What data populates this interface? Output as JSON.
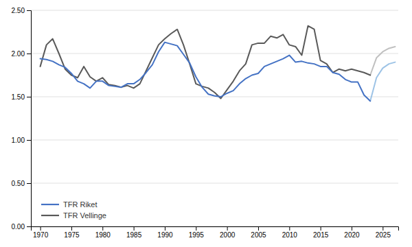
{
  "chart_data": {
    "type": "line",
    "xlim": [
      1968.5,
      2027.5
    ],
    "xticks": [
      1970,
      1975,
      1980,
      1985,
      1990,
      1995,
      2000,
      2005,
      2010,
      2015,
      2020,
      2025
    ],
    "ylim": [
      0.0,
      2.5
    ],
    "yticks": [
      {
        "value": 0.0,
        "label": "0.00"
      },
      {
        "value": 0.5,
        "label": "0.50"
      },
      {
        "value": 1.0,
        "label": "1.00"
      },
      {
        "value": 1.5,
        "label": "1.50"
      },
      {
        "value": 2.0,
        "label": "2.00"
      },
      {
        "value": 2.5,
        "label": "2.50"
      }
    ],
    "grid": "y",
    "legend": "lower left",
    "series": [
      {
        "name": "TFR Riket",
        "color": "#4472C4",
        "x": [
          1970,
          1971,
          1972,
          1973,
          1974,
          1975,
          1976,
          1977,
          1978,
          1979,
          1980,
          1981,
          1982,
          1983,
          1984,
          1985,
          1986,
          1987,
          1988,
          1989,
          1990,
          1991,
          1992,
          1993,
          1994,
          1995,
          1996,
          1997,
          1998,
          1999,
          2000,
          2001,
          2002,
          2003,
          2004,
          2005,
          2006,
          2007,
          2008,
          2009,
          2010,
          2011,
          2012,
          2013,
          2014,
          2015,
          2016,
          2017,
          2018,
          2019,
          2020,
          2021,
          2022,
          2023
        ],
        "values": [
          1.94,
          1.93,
          1.91,
          1.87,
          1.84,
          1.77,
          1.68,
          1.65,
          1.6,
          1.68,
          1.68,
          1.63,
          1.62,
          1.61,
          1.65,
          1.65,
          1.7,
          1.78,
          1.87,
          2.02,
          2.13,
          2.11,
          2.09,
          1.99,
          1.89,
          1.73,
          1.61,
          1.53,
          1.51,
          1.5,
          1.54,
          1.57,
          1.65,
          1.71,
          1.75,
          1.77,
          1.85,
          1.88,
          1.91,
          1.94,
          1.98,
          1.9,
          1.91,
          1.89,
          1.88,
          1.85,
          1.85,
          1.78,
          1.76,
          1.7,
          1.67,
          1.67,
          1.52,
          1.45
        ]
      },
      {
        "color": "#9DC3E6",
        "x": [
          2023,
          2024,
          2025,
          2026,
          2027
        ],
        "values": [
          1.45,
          1.72,
          1.83,
          1.88,
          1.9
        ]
      },
      {
        "name": "TFR Vellinge",
        "color": "#595959",
        "x": [
          1970,
          1971,
          1972,
          1973,
          1974,
          1975,
          1976,
          1977,
          1978,
          1979,
          1980,
          1981,
          1982,
          1983,
          1984,
          1985,
          1986,
          1987,
          1988,
          1989,
          1990,
          1991,
          1992,
          1993,
          1994,
          1995,
          1996,
          1997,
          1998,
          1999,
          2000,
          2001,
          2002,
          2003,
          2004,
          2005,
          2006,
          2007,
          2008,
          2009,
          2010,
          2011,
          2012,
          2013,
          2014,
          2015,
          2016,
          2017,
          2018,
          2019,
          2020,
          2021,
          2022,
          2023
        ],
        "values": [
          1.85,
          2.1,
          2.17,
          2.0,
          1.82,
          1.75,
          1.72,
          1.85,
          1.73,
          1.68,
          1.72,
          1.64,
          1.63,
          1.61,
          1.63,
          1.6,
          1.65,
          1.8,
          1.95,
          2.1,
          2.17,
          2.23,
          2.28,
          2.1,
          1.88,
          1.65,
          1.62,
          1.6,
          1.55,
          1.48,
          1.58,
          1.68,
          1.8,
          1.88,
          2.1,
          2.12,
          2.12,
          2.2,
          2.18,
          2.22,
          2.1,
          2.08,
          1.98,
          2.32,
          2.28,
          1.92,
          1.88,
          1.78,
          1.82,
          1.8,
          1.82,
          1.8,
          1.78,
          1.75
        ]
      },
      {
        "color": "#C0C0C0",
        "x": [
          2023,
          2024,
          2025,
          2026,
          2027
        ],
        "values": [
          1.75,
          1.95,
          2.02,
          2.06,
          2.08
        ]
      }
    ]
  }
}
